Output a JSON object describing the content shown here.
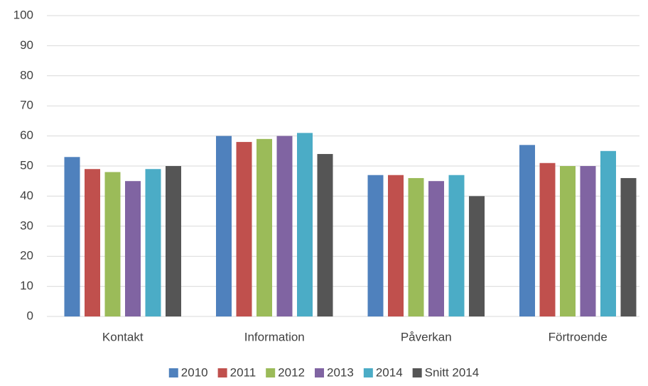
{
  "chart_data": {
    "type": "bar",
    "categories": [
      "Kontakt",
      "Information",
      "Påverkan",
      "Förtroende"
    ],
    "series": [
      {
        "name": "2010",
        "color": "#4f81bd",
        "values": [
          53,
          60,
          47,
          57
        ]
      },
      {
        "name": "2011",
        "color": "#c0504d",
        "values": [
          49,
          58,
          47,
          51
        ]
      },
      {
        "name": "2012",
        "color": "#9bbb59",
        "values": [
          48,
          59,
          46,
          50
        ]
      },
      {
        "name": "2013",
        "color": "#8064a2",
        "values": [
          45,
          60,
          45,
          50
        ]
      },
      {
        "name": "2014",
        "color": "#4bacc6",
        "values": [
          49,
          61,
          47,
          55
        ]
      },
      {
        "name": "Snitt 2014",
        "color": "#555555",
        "values": [
          50,
          54,
          40,
          46
        ]
      }
    ],
    "ylim": [
      0,
      100
    ],
    "yticks": [
      0,
      10,
      20,
      30,
      40,
      50,
      60,
      70,
      80,
      90,
      100
    ],
    "grid": true,
    "legend": "bottom"
  }
}
